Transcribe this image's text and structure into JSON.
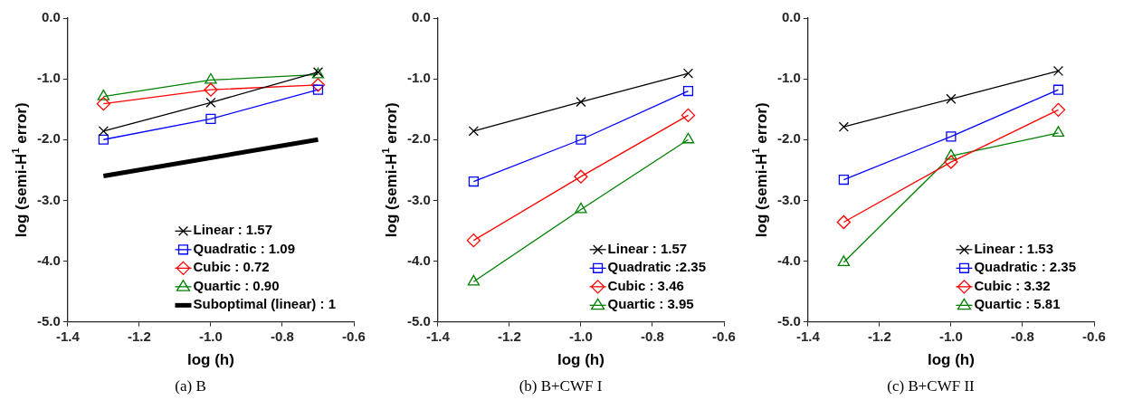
{
  "chart_data": [
    {
      "type": "line",
      "x": [
        -1.3,
        -1.0,
        -0.7
      ],
      "xlabel": "log (h)",
      "ylabel": "log (semi-H$^{1}$ error)",
      "xlim": [
        -1.4,
        -0.6
      ],
      "ylim": [
        -5,
        0
      ],
      "xticks": [
        {
          "value": -1.4,
          "label": "-1.4"
        },
        {
          "value": -1.2,
          "label": "-1.2"
        },
        {
          "value": -1,
          "label": "-1.0"
        },
        {
          "value": -0.8,
          "label": "-0.8"
        },
        {
          "value": -0.6,
          "label": "-0.6"
        }
      ],
      "yticks": [
        {
          "value": -5,
          "label": "-5.0"
        },
        {
          "value": -4,
          "label": "-4.0"
        },
        {
          "value": -3,
          "label": "-3.0"
        },
        {
          "value": -2,
          "label": "-2.0"
        },
        {
          "value": -1,
          "label": "-1.0"
        },
        {
          "value": 0,
          "label": "0.0"
        }
      ],
      "legend": "bottom right",
      "annotations": [
        "(a) B"
      ],
      "series": [
        {
          "name": "Linear : 1.57",
          "color": "#000000",
          "marker": "cross",
          "values": [
            -1.86,
            -1.39,
            -0.89
          ]
        },
        {
          "name": "Quadratic : 1.09",
          "color": "#0000ff",
          "marker": "square",
          "values": [
            -2.0,
            -1.66,
            -1.18
          ]
        },
        {
          "name": "Cubic : 0.72",
          "color": "#ff0000",
          "marker": "diamond",
          "values": [
            -1.41,
            -1.18,
            -1.1
          ]
        },
        {
          "name": "Quartic : 0.90",
          "color": "#008000",
          "marker": "triangle",
          "values": [
            -1.29,
            -1.02,
            -0.93
          ]
        },
        {
          "name": "Suboptimal (linear) : 1",
          "color": "#000000",
          "marker": "none",
          "x": [
            -1.3,
            -0.7
          ],
          "values": [
            -2.6,
            -2.0
          ]
        }
      ]
    },
    {
      "type": "line",
      "x": [
        -1.3,
        -1.0,
        -0.7
      ],
      "xlabel": "log (h)",
      "ylabel": "log (semi-H$^{1}$ error)",
      "xlim": [
        -1.4,
        -0.6
      ],
      "ylim": [
        -5,
        0
      ],
      "xticks": [
        {
          "value": -1.4,
          "label": "-1.4"
        },
        {
          "value": -1.2,
          "label": "-1.2"
        },
        {
          "value": -1,
          "label": "-1.0"
        },
        {
          "value": -0.8,
          "label": "-0.8"
        },
        {
          "value": -0.6,
          "label": "-0.6"
        }
      ],
      "yticks": [
        {
          "value": -5,
          "label": "-5.0"
        },
        {
          "value": -4,
          "label": "-4.0"
        },
        {
          "value": -3,
          "label": "-3.0"
        },
        {
          "value": -2,
          "label": "-2.0"
        },
        {
          "value": -1,
          "label": "-1.0"
        },
        {
          "value": 0,
          "label": "0.0"
        }
      ],
      "legend": "bottom right",
      "annotations": [
        "(b) B+CWF I"
      ],
      "series": [
        {
          "name": "Linear : 1.57",
          "color": "#000000",
          "marker": "cross",
          "values": [
            -1.86,
            -1.38,
            -0.91
          ]
        },
        {
          "name": "Quadratic :2.35",
          "color": "#0000ff",
          "marker": "square",
          "values": [
            -2.69,
            -2.0,
            -1.2
          ]
        },
        {
          "name": "Cubic : 3.46",
          "color": "#ff0000",
          "marker": "diamond",
          "values": [
            -3.66,
            -2.61,
            -1.6
          ]
        },
        {
          "name": "Quartic : 3.95",
          "color": "#008000",
          "marker": "triangle",
          "values": [
            -4.34,
            -3.15,
            -2.0
          ]
        }
      ]
    },
    {
      "type": "line",
      "x": [
        -1.3,
        -1.0,
        -0.7
      ],
      "xlabel": "log (h)",
      "ylabel": "log (semi-H$^{1}$ error)",
      "xlim": [
        -1.4,
        -0.6
      ],
      "ylim": [
        -5,
        0
      ],
      "xticks": [
        {
          "value": -1.4,
          "label": "-1.4"
        },
        {
          "value": -1.2,
          "label": "-1.2"
        },
        {
          "value": -1,
          "label": "-1.0"
        },
        {
          "value": -0.8,
          "label": "-0.8"
        },
        {
          "value": -0.6,
          "label": "-0.6"
        }
      ],
      "yticks": [
        {
          "value": -5,
          "label": "-5.0"
        },
        {
          "value": -4,
          "label": "-4.0"
        },
        {
          "value": -3,
          "label": "-3.0"
        },
        {
          "value": -2,
          "label": "-2.0"
        },
        {
          "value": -1,
          "label": "-1.0"
        },
        {
          "value": 0,
          "label": "0.0"
        }
      ],
      "legend": "bottom right",
      "annotations": [
        "(c) B+CWF II"
      ],
      "series": [
        {
          "name": "Linear : 1.53",
          "color": "#000000",
          "marker": "cross",
          "values": [
            -1.79,
            -1.33,
            -0.87
          ]
        },
        {
          "name": "Quadratic : 2.35",
          "color": "#0000ff",
          "marker": "square",
          "values": [
            -2.66,
            -1.95,
            -1.18
          ]
        },
        {
          "name": "Cubic : 3.32",
          "color": "#ff0000",
          "marker": "diamond",
          "values": [
            -3.36,
            -2.37,
            -1.51
          ]
        },
        {
          "name": "Quartic : 5.81",
          "color": "#008000",
          "marker": "triangle",
          "values": [
            -4.02,
            -2.27,
            -1.89
          ]
        }
      ]
    }
  ]
}
